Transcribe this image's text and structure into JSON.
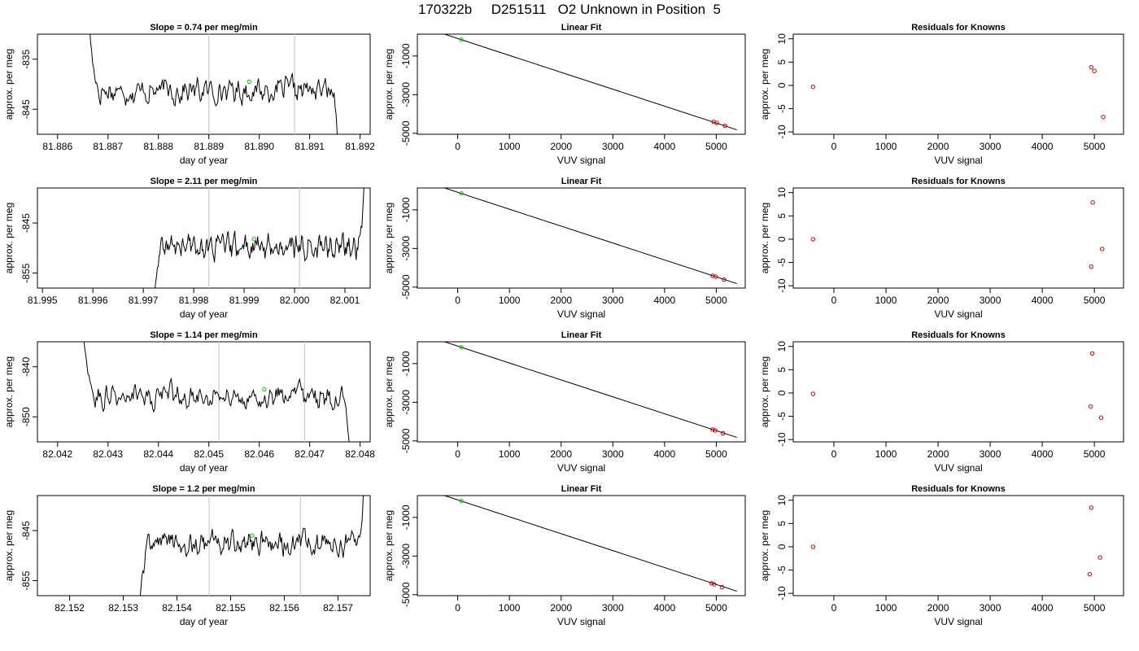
{
  "title": "170322b     D251511   O2 Unknown in Position  5",
  "colors": {
    "axis": "#000000",
    "trace": "#000000",
    "marker_vline": "#cccccc",
    "known_point": "#cc0000",
    "unknown_point": "#00cc00"
  },
  "chart_data": [
    {
      "type": "line",
      "row": 0,
      "col": 0,
      "title": "Slope =  0.74  per meg/min",
      "xlabel": "day of year",
      "ylabel": "approx. per meg",
      "xlim": [
        81.8856,
        81.8922
      ],
      "ylim": [
        -850,
        -830
      ],
      "xticks": [
        81.886,
        81.887,
        81.888,
        81.889,
        81.89,
        81.891,
        81.892
      ],
      "xtick_labels": [
        "81.886",
        "81.887",
        "81.888",
        "81.889",
        "81.890",
        "81.891",
        "81.892"
      ],
      "yticks": [
        -835,
        -845
      ],
      "ytick_labels": [
        "-835",
        "-845"
      ],
      "vlines": [
        81.889,
        81.8907
      ],
      "trace": {
        "x_start": 81.8866,
        "x_end": 81.8916,
        "baseline": -841.3,
        "slope": 0.74,
        "start_value": -825,
        "end_value": -858
      },
      "unknown_point": {
        "x": 81.8898,
        "y": -839.5
      }
    },
    {
      "type": "scatter",
      "row": 0,
      "col": 1,
      "title": "Linear Fit",
      "xlabel": "VUV signal",
      "ylabel": "approx. per meg",
      "xlim": [
        -780,
        5560
      ],
      "ylim": [
        -5050,
        130
      ],
      "xticks": [
        0,
        1000,
        2000,
        3000,
        4000,
        5000
      ],
      "xtick_labels": [
        "0",
        "1000",
        "2000",
        "3000",
        "4000",
        "5000"
      ],
      "yticks": [
        -1000,
        -3000,
        -5000
      ],
      "ytick_labels": [
        "-1000",
        "-3000",
        "-5000"
      ],
      "fit_line": {
        "x": [
          -540,
          5400
        ],
        "y": [
          380,
          -4820
        ]
      },
      "known_points": [
        {
          "x": -420,
          "y": 280
        },
        {
          "x": 4950,
          "y": -4410
        },
        {
          "x": 5010,
          "y": -4460
        },
        {
          "x": 5170,
          "y": -4610
        }
      ],
      "unknown_point": {
        "x": 70,
        "y": -150
      }
    },
    {
      "type": "scatter",
      "row": 0,
      "col": 2,
      "title": "Residuals for Knowns",
      "xlabel": "VUV signal",
      "ylabel": "",
      "xlim": [
        -780,
        5560
      ],
      "ylim": [
        -10.5,
        11
      ],
      "xticks": [
        0,
        1000,
        2000,
        3000,
        4000,
        5000
      ],
      "xtick_labels": [
        "0",
        "1000",
        "2000",
        "3000",
        "4000",
        "5000"
      ],
      "yticks": [
        10,
        5,
        0,
        -5,
        -10
      ],
      "ytick_labels": [
        "10",
        "5",
        "0",
        "-5",
        "-10"
      ],
      "known_points": [
        {
          "x": -400,
          "y": -0.3
        },
        {
          "x": 4940,
          "y": 3.9
        },
        {
          "x": 5000,
          "y": 3.1
        },
        {
          "x": 5170,
          "y": -6.8
        }
      ]
    },
    {
      "type": "line",
      "row": 1,
      "col": 0,
      "title": "Slope =  2.11  per meg/min",
      "xlabel": "day of year",
      "ylabel": "approx. per meg",
      "xlim": [
        81.9949,
        82.0015
      ],
      "ylim": [
        -858,
        -838
      ],
      "xticks": [
        81.995,
        81.996,
        81.997,
        81.998,
        81.999,
        82.0,
        82.001
      ],
      "xtick_labels": [
        "81.995",
        "81.996",
        "81.997",
        "81.998",
        "81.999",
        "82.000",
        "82.001"
      ],
      "yticks": [
        -845,
        -855
      ],
      "ytick_labels": [
        "-845",
        "-855"
      ],
      "vlines": [
        81.9983,
        82.0001
      ],
      "trace": {
        "x_start": 81.9972,
        "x_end": 82.0014,
        "baseline": -849.8,
        "slope": 2.11,
        "start_value": -862,
        "end_value": -832
      },
      "unknown_point": {
        "x": 81.9992,
        "y": -848.2
      }
    },
    {
      "type": "scatter",
      "row": 1,
      "col": 1,
      "title": "Linear Fit",
      "xlabel": "VUV signal",
      "ylabel": "approx. per meg",
      "xlim": [
        -780,
        5560
      ],
      "ylim": [
        -5050,
        130
      ],
      "xticks": [
        0,
        1000,
        2000,
        3000,
        4000,
        5000
      ],
      "xtick_labels": [
        "0",
        "1000",
        "2000",
        "3000",
        "4000",
        "5000"
      ],
      "yticks": [
        -1000,
        -3000,
        -5000
      ],
      "ytick_labels": [
        "-1000",
        "-3000",
        "-5000"
      ],
      "fit_line": {
        "x": [
          -540,
          5400
        ],
        "y": [
          380,
          -4820
        ]
      },
      "known_points": [
        {
          "x": -420,
          "y": 280
        },
        {
          "x": 4930,
          "y": -4410
        },
        {
          "x": 4990,
          "y": -4460
        },
        {
          "x": 5150,
          "y": -4610
        }
      ],
      "unknown_point": {
        "x": 70,
        "y": -150
      }
    },
    {
      "type": "scatter",
      "row": 1,
      "col": 2,
      "title": "Residuals for Knowns",
      "xlabel": "VUV signal",
      "ylabel": "",
      "xlim": [
        -780,
        5560
      ],
      "ylim": [
        -10.5,
        11
      ],
      "xticks": [
        0,
        1000,
        2000,
        3000,
        4000,
        5000
      ],
      "xtick_labels": [
        "0",
        "1000",
        "2000",
        "3000",
        "4000",
        "5000"
      ],
      "yticks": [
        10,
        5,
        0,
        -5,
        -10
      ],
      "ytick_labels": [
        "10",
        "5",
        "0",
        "-5",
        "-10"
      ],
      "known_points": [
        {
          "x": -400,
          "y": 0.0
        },
        {
          "x": 4940,
          "y": -5.9
        },
        {
          "x": 4970,
          "y": 7.9
        },
        {
          "x": 5150,
          "y": -2.1
        }
      ]
    },
    {
      "type": "line",
      "row": 2,
      "col": 0,
      "title": "Slope =  1.14  per meg/min",
      "xlabel": "day of year",
      "ylabel": "approx. per meg",
      "xlim": [
        82.0416,
        82.0482
      ],
      "ylim": [
        -855,
        -835
      ],
      "xticks": [
        82.042,
        82.043,
        82.044,
        82.045,
        82.046,
        82.047,
        82.048
      ],
      "xtick_labels": [
        "82.042",
        "82.043",
        "82.044",
        "82.045",
        "82.046",
        "82.047",
        "82.048"
      ],
      "yticks": [
        -840,
        -850
      ],
      "ytick_labels": [
        "-840",
        "-850"
      ],
      "vlines": [
        82.0452,
        82.0469
      ],
      "trace": {
        "x_start": 82.0425,
        "x_end": 82.0478,
        "baseline": -846.0,
        "slope": 1.14,
        "start_value": -833,
        "end_value": -858
      },
      "unknown_point": {
        "x": 82.0461,
        "y": -844.5
      }
    },
    {
      "type": "scatter",
      "row": 2,
      "col": 1,
      "title": "Linear Fit",
      "xlabel": "VUV signal",
      "ylabel": "approx. per meg",
      "xlim": [
        -780,
        5560
      ],
      "ylim": [
        -5050,
        130
      ],
      "xticks": [
        0,
        1000,
        2000,
        3000,
        4000,
        5000
      ],
      "xtick_labels": [
        "0",
        "1000",
        "2000",
        "3000",
        "4000",
        "5000"
      ],
      "yticks": [
        -1000,
        -3000,
        -5000
      ],
      "ytick_labels": [
        "-1000",
        "-3000",
        "-5000"
      ],
      "fit_line": {
        "x": [
          -540,
          5400
        ],
        "y": [
          380,
          -4820
        ]
      },
      "known_points": [
        {
          "x": -420,
          "y": 280
        },
        {
          "x": 4930,
          "y": -4410
        },
        {
          "x": 4980,
          "y": -4460
        },
        {
          "x": 5130,
          "y": -4610
        }
      ],
      "unknown_point": {
        "x": 70,
        "y": -150
      }
    },
    {
      "type": "scatter",
      "row": 2,
      "col": 2,
      "title": "Residuals for Knowns",
      "xlabel": "VUV signal",
      "ylabel": "",
      "xlim": [
        -780,
        5560
      ],
      "ylim": [
        -10.5,
        11
      ],
      "xticks": [
        0,
        1000,
        2000,
        3000,
        4000,
        5000
      ],
      "xtick_labels": [
        "0",
        "1000",
        "2000",
        "3000",
        "4000",
        "5000"
      ],
      "yticks": [
        10,
        5,
        0,
        -5,
        -10
      ],
      "ytick_labels": [
        "10",
        "5",
        "0",
        "-5",
        "-10"
      ],
      "known_points": [
        {
          "x": -400,
          "y": -0.2
        },
        {
          "x": 4930,
          "y": -2.9
        },
        {
          "x": 4960,
          "y": 8.5
        },
        {
          "x": 5130,
          "y": -5.3
        }
      ]
    },
    {
      "type": "line",
      "row": 3,
      "col": 0,
      "title": "Slope =  1.2  per meg/min",
      "xlabel": "day of year",
      "ylabel": "approx. per meg",
      "xlim": [
        82.1514,
        82.1576
      ],
      "ylim": [
        -858,
        -838
      ],
      "xticks": [
        82.152,
        82.153,
        82.154,
        82.155,
        82.156,
        82.157
      ],
      "xtick_labels": [
        "82.152",
        "82.153",
        "82.154",
        "82.155",
        "82.156",
        "82.157"
      ],
      "yticks": [
        -845,
        -855
      ],
      "ytick_labels": [
        "-845",
        "-855"
      ],
      "vlines": [
        82.1546,
        82.1563
      ],
      "trace": {
        "x_start": 82.1533,
        "x_end": 82.1575,
        "baseline": -847.5,
        "slope": 1.2,
        "start_value": -860,
        "end_value": -832
      },
      "unknown_point": {
        "x": 82.1554,
        "y": -846.0
      }
    },
    {
      "type": "scatter",
      "row": 3,
      "col": 1,
      "title": "Linear Fit",
      "xlabel": "VUV signal",
      "ylabel": "approx. per meg",
      "xlim": [
        -780,
        5560
      ],
      "ylim": [
        -5050,
        130
      ],
      "xticks": [
        0,
        1000,
        2000,
        3000,
        4000,
        5000
      ],
      "xtick_labels": [
        "0",
        "1000",
        "2000",
        "3000",
        "4000",
        "5000"
      ],
      "yticks": [
        -1000,
        -3000,
        -5000
      ],
      "ytick_labels": [
        "-1000",
        "-3000",
        "-5000"
      ],
      "fit_line": {
        "x": [
          -540,
          5400
        ],
        "y": [
          380,
          -4820
        ]
      },
      "known_points": [
        {
          "x": -420,
          "y": 280
        },
        {
          "x": 4910,
          "y": -4410
        },
        {
          "x": 4960,
          "y": -4460
        },
        {
          "x": 5110,
          "y": -4610
        }
      ],
      "unknown_point": {
        "x": 70,
        "y": -150
      }
    },
    {
      "type": "scatter",
      "row": 3,
      "col": 2,
      "title": "Residuals for Knowns",
      "xlabel": "VUV signal",
      "ylabel": "",
      "xlim": [
        -780,
        5560
      ],
      "ylim": [
        -10.5,
        11
      ],
      "xticks": [
        0,
        1000,
        2000,
        3000,
        4000,
        5000
      ],
      "xtick_labels": [
        "0",
        "1000",
        "2000",
        "3000",
        "4000",
        "5000"
      ],
      "yticks": [
        10,
        5,
        0,
        -5,
        -10
      ],
      "ytick_labels": [
        "10",
        "5",
        "0",
        "-5",
        "-10"
      ],
      "known_points": [
        {
          "x": -400,
          "y": 0.0
        },
        {
          "x": 4910,
          "y": -5.9
        },
        {
          "x": 4940,
          "y": 8.4
        },
        {
          "x": 5110,
          "y": -2.3
        }
      ]
    }
  ]
}
